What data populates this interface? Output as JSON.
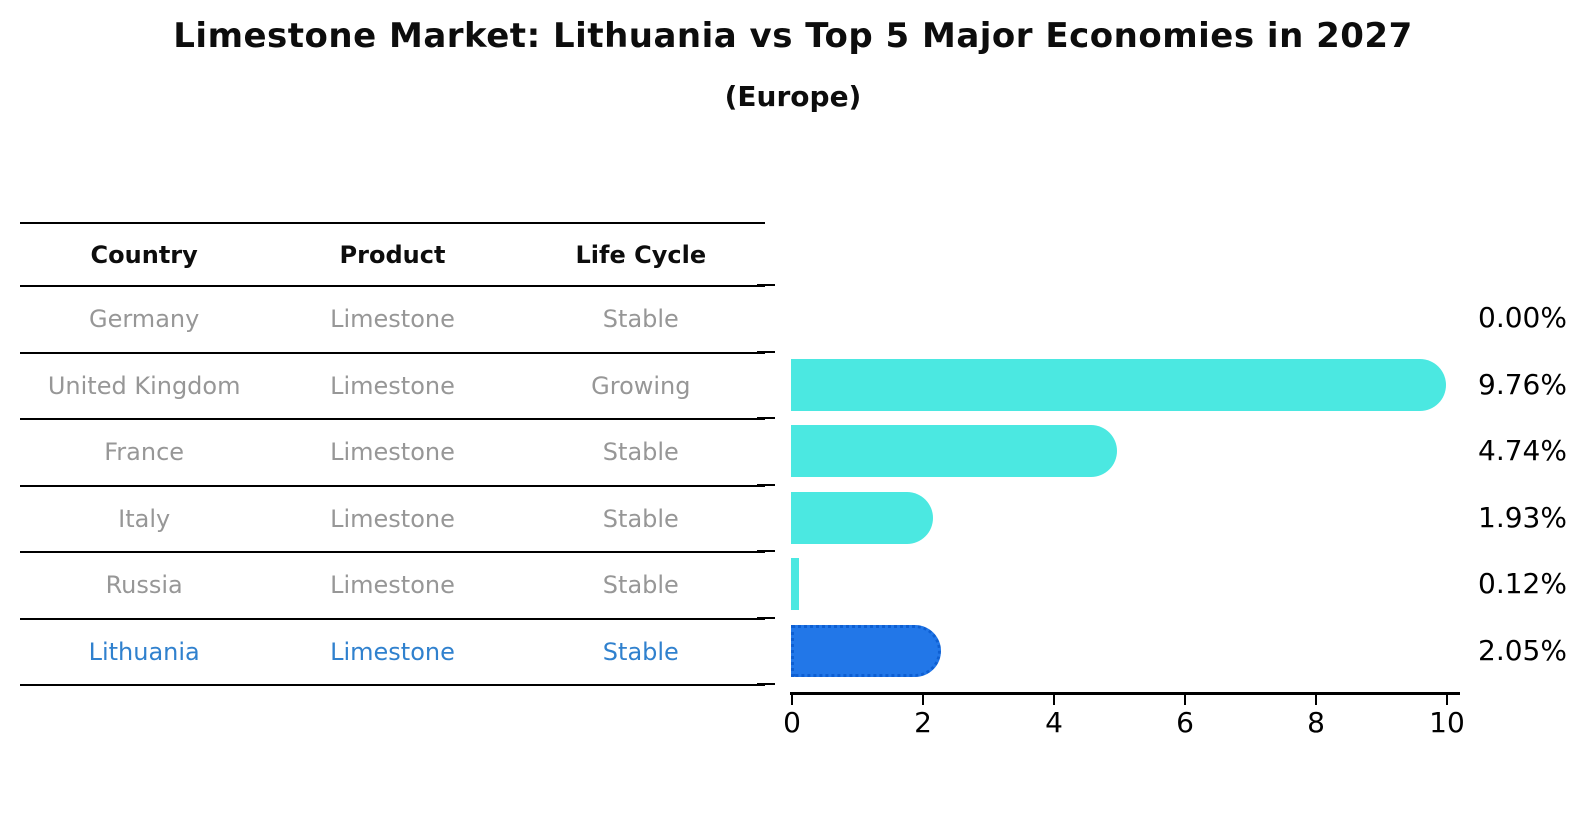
{
  "title": "Limestone Market: Lithuania vs Top 5 Major Economies in 2027",
  "subtitle": "(Europe)",
  "table": {
    "headers": [
      "Country",
      "Product",
      "Life Cycle"
    ],
    "rows": [
      {
        "country": "Germany",
        "product": "Limestone",
        "life_cycle": "Stable",
        "highlight": false
      },
      {
        "country": "United Kingdom",
        "product": "Limestone",
        "life_cycle": "Growing",
        "highlight": false
      },
      {
        "country": "France",
        "product": "Limestone",
        "life_cycle": "Stable",
        "highlight": false
      },
      {
        "country": "Italy",
        "product": "Limestone",
        "life_cycle": "Stable",
        "highlight": false
      },
      {
        "country": "Russia",
        "product": "Limestone",
        "life_cycle": "Stable",
        "highlight": false
      },
      {
        "country": "Lithuania",
        "product": "Limestone",
        "life_cycle": "Stable",
        "highlight": true
      }
    ]
  },
  "chart_data": {
    "type": "bar",
    "orientation": "horizontal",
    "title": "Limestone Market: Lithuania vs Top 5 Major Economies in 2027",
    "subtitle": "(Europe)",
    "categories": [
      "Germany",
      "United Kingdom",
      "France",
      "Italy",
      "Russia",
      "Lithuania"
    ],
    "values": [
      0.0,
      9.76,
      4.74,
      1.93,
      0.12,
      2.05
    ],
    "labels": [
      "0.00%",
      "9.76%",
      "4.74%",
      "1.93%",
      "0.12%",
      "2.05%"
    ],
    "x_ticks": [
      "0",
      "2",
      "4",
      "6",
      "8",
      "10"
    ],
    "xlim": [
      0,
      10
    ],
    "grid": false,
    "legend": "none",
    "bar_color": "#4be8e1",
    "highlight_color": "#2277e8",
    "highlight_index": 5
  },
  "colors": {
    "header_text": "#0d0d0d",
    "row_text": "#979797",
    "highlight_text": "#3081ce",
    "bar_cyan": "#4be8e1",
    "bar_blue": "#2277e8",
    "axis": "#000000"
  }
}
